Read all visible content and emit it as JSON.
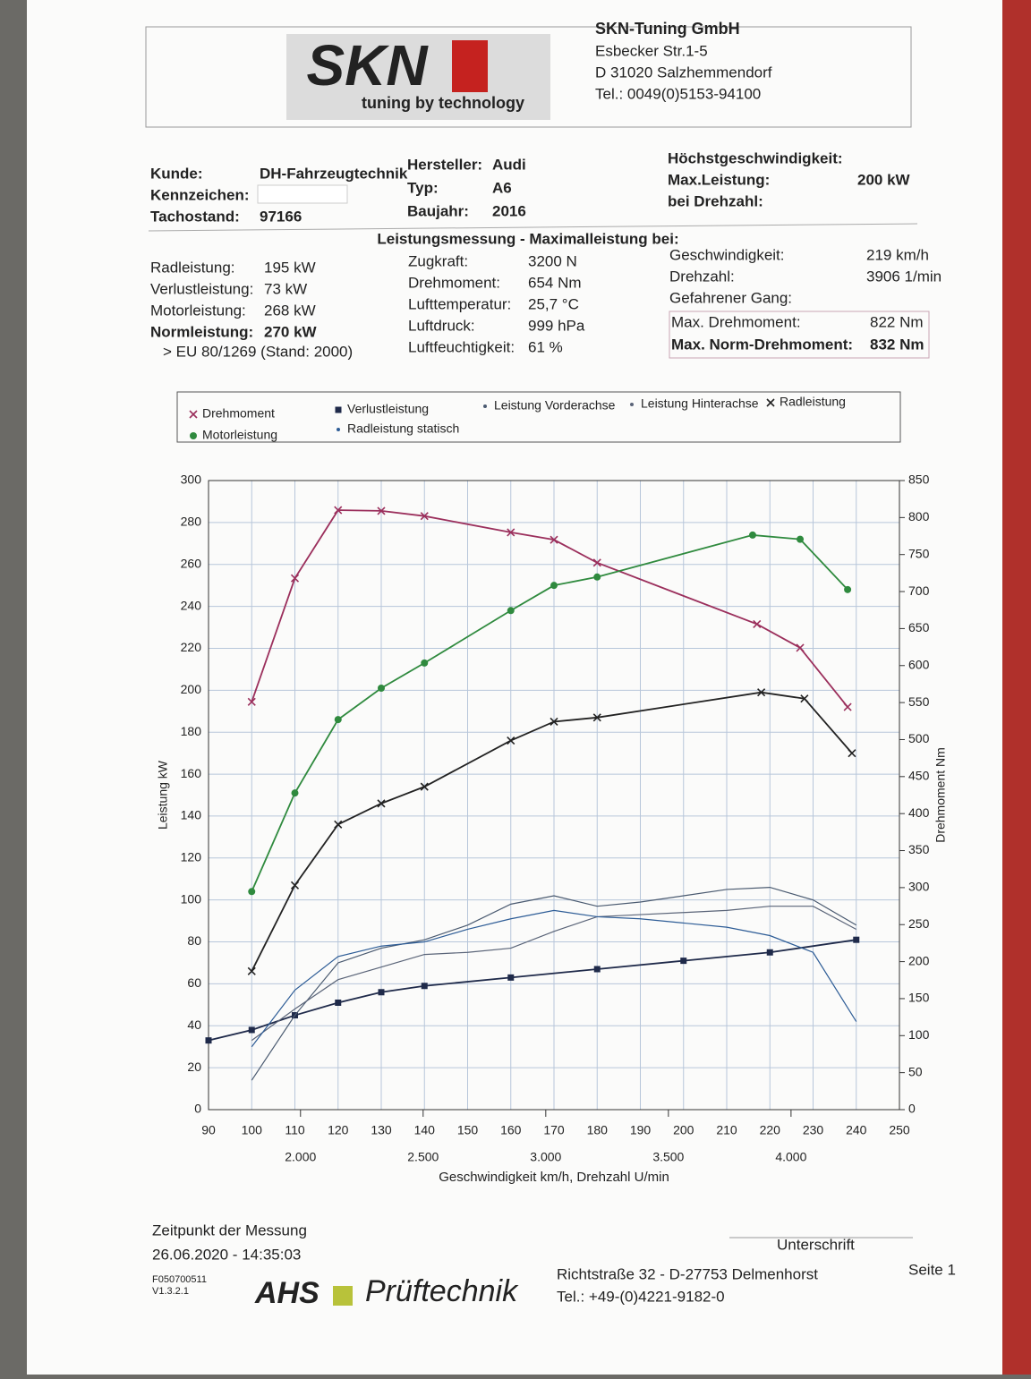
{
  "header": {
    "logo_text": "SKN",
    "logo_tagline": "tuning by technology",
    "company": "SKN-Tuning GmbH",
    "street": "Esbecker Str.1-5",
    "city": "D 31020 Salzhemmendorf",
    "phone": "Tel.: 0049(0)5153-94100"
  },
  "info_left": [
    {
      "label": "Kunde:",
      "value": "DH-Fahrzeugtechnik"
    },
    {
      "label": "Kennzeichen:"
    },
    {
      "label": "Tachostand:",
      "value": "97166"
    }
  ],
  "info_mid": [
    {
      "label": "Hersteller:",
      "value": "Audi"
    },
    {
      "label": "Typ:",
      "value": "A6"
    },
    {
      "label": "Baujahr:",
      "value": "2016"
    }
  ],
  "info_right": [
    {
      "label": "Höchstgeschwindigkeit:"
    },
    {
      "label": "Max.Leistung:",
      "value": "200 kW"
    },
    {
      "label": "bei Drehzahl:"
    }
  ],
  "measurement": {
    "title": "Leistungsmessung - Maximalleistung bei:",
    "col1": [
      {
        "label": "Radleistung:",
        "value": "195 kW"
      },
      {
        "label": "Verlustleistung:",
        "value": "73 kW"
      },
      {
        "label": "Motorleistung:",
        "value": "268 kW"
      },
      {
        "label": "Normleistung:",
        "value": "270 kW"
      }
    ],
    "norm": "> EU 80/1269 (Stand: 2000)",
    "col2": [
      {
        "label": "Zugkraft:",
        "value": "3200 N"
      },
      {
        "label": "Drehmoment:",
        "value": "654 Nm"
      },
      {
        "label": "Lufttemperatur:",
        "value": "25,7 °C"
      },
      {
        "label": "Luftdruck:",
        "value": "999 hPa"
      },
      {
        "label": "Luftfeuchtigkeit:",
        "value": "61 %"
      }
    ],
    "col3": [
      {
        "label": "Geschwindigkeit:",
        "value": "219 km/h"
      },
      {
        "label": "Drehzahl:",
        "value": "3906 1/min"
      },
      {
        "label": "Gefahrener Gang:"
      }
    ],
    "max": [
      {
        "label": "Max. Drehmoment:",
        "value": "822 Nm"
      },
      {
        "label": "Max. Norm-Drehmoment:",
        "value": "832 Nm"
      }
    ]
  },
  "chart_data": {
    "type": "line",
    "x_label": "Geschwindigkeit km/h, Drehzahl U/min",
    "y_label": "Leistung kW",
    "y2_label": "Drehmoment Nm",
    "grid": true,
    "xlim": [
      90,
      250
    ],
    "xticks": [
      90,
      100,
      110,
      120,
      130,
      140,
      150,
      160,
      170,
      180,
      190,
      200,
      210,
      220,
      230,
      240,
      250
    ],
    "x2lim": [
      1625,
      4442
    ],
    "x2ticks": [
      {
        "value": 2000,
        "label": "2.000"
      },
      {
        "value": 2500,
        "label": "2.500"
      },
      {
        "value": 3000,
        "label": "3.000"
      },
      {
        "value": 3500,
        "label": "3.500"
      },
      {
        "value": 4000,
        "label": "4.000"
      }
    ],
    "ylim": [
      0,
      300
    ],
    "yticks": [
      0,
      20,
      40,
      60,
      80,
      100,
      120,
      140,
      160,
      180,
      200,
      220,
      240,
      260,
      280,
      300
    ],
    "y2lim": [
      0,
      850
    ],
    "y2ticks": [
      0,
      50,
      100,
      150,
      200,
      250,
      300,
      350,
      400,
      450,
      500,
      550,
      600,
      650,
      700,
      750,
      800,
      850
    ],
    "series": [
      {
        "name": "Drehmoment",
        "color": "#9b2f5c",
        "axis": "y2",
        "marker": "x",
        "x": [
          100,
          110,
          120,
          130,
          140,
          160,
          170,
          180,
          217,
          227,
          238
        ],
        "values": [
          551,
          718,
          810,
          809,
          802,
          780,
          770,
          739,
          656,
          624,
          544
        ]
      },
      {
        "name": "Verlustleistung",
        "color": "#1f2a4a",
        "marker": "square",
        "x": [
          90,
          100,
          110,
          120,
          130,
          140,
          160,
          180,
          200,
          220,
          240
        ],
        "values": [
          33,
          38,
          45,
          51,
          56,
          59,
          63,
          67,
          71,
          75,
          81
        ]
      },
      {
        "name": "Leistung Vorderachse",
        "color": "#4a5a70",
        "marker": "dot",
        "x": [
          100,
          110,
          120,
          130,
          140,
          150,
          160,
          170,
          180,
          190,
          200,
          210,
          220,
          230,
          240
        ],
        "values": [
          14,
          45,
          70,
          77,
          81,
          88,
          98,
          102,
          97,
          99,
          102,
          105,
          106,
          100,
          88
        ]
      },
      {
        "name": "Leistung Hinterachse",
        "color": "#5a6478",
        "marker": "dot",
        "x": [
          100,
          110,
          120,
          130,
          140,
          150,
          160,
          170,
          180,
          190,
          200,
          210,
          220,
          230,
          240
        ],
        "values": [
          33,
          48,
          62,
          68,
          74,
          75,
          77,
          85,
          92,
          93,
          94,
          95,
          97,
          97,
          86
        ]
      },
      {
        "name": "Radleistung",
        "color": "#222222",
        "marker": "x",
        "x": [
          100,
          110,
          120,
          130,
          140,
          160,
          170,
          180,
          218,
          228,
          239
        ],
        "values": [
          66,
          107,
          136,
          146,
          154,
          176,
          185,
          187,
          199,
          196,
          170
        ]
      },
      {
        "name": "Motorleistung",
        "color": "#2f8a3e",
        "marker": "circle",
        "x": [
          100,
          110,
          120,
          130,
          140,
          160,
          170,
          180,
          216,
          227,
          238
        ],
        "values": [
          104,
          151,
          186,
          201,
          213,
          238,
          250,
          254,
          274,
          272,
          248
        ]
      },
      {
        "name": "Radleistung statisch",
        "color": "#2d5c96",
        "marker": "dot",
        "x": [
          100,
          110,
          120,
          130,
          140,
          150,
          160,
          170,
          180,
          190,
          200,
          210,
          220,
          230,
          240
        ],
        "values": [
          30,
          57,
          73,
          78,
          80,
          86,
          91,
          95,
          92,
          91,
          89,
          87,
          83,
          75,
          42
        ]
      }
    ]
  },
  "footer": {
    "time_label": "Zeitpunkt der Messung",
    "time": "26.06.2020 - 14:35:03",
    "signature": "Unterschrift",
    "code": "F050700511",
    "version": "V1.3.2.1",
    "brand1": "AHS",
    "brand2": "Prüftechnik",
    "address": "Richtstraße 32 - D-27753 Delmenhorst",
    "phone": "Tel.: +49-(0)4221-9182-0",
    "page": "Seite 1"
  }
}
